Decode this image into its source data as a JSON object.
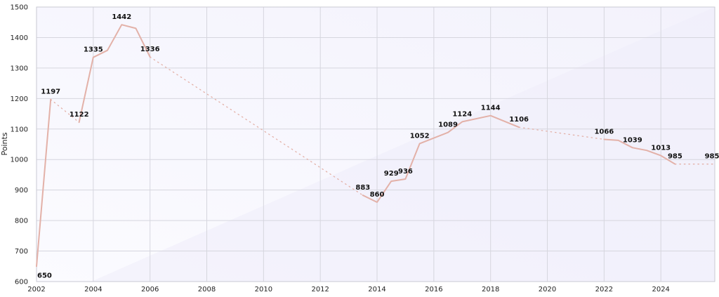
{
  "chart_data": {
    "type": "line",
    "title": "",
    "xlabel": "",
    "ylabel": "Points",
    "xlim": [
      2002,
      2025.9
    ],
    "ylim": [
      600,
      1500
    ],
    "xticks": [
      2002,
      2004,
      2006,
      2008,
      2010,
      2012,
      2014,
      2016,
      2018,
      2020,
      2022,
      2024
    ],
    "yticks": [
      600,
      700,
      800,
      900,
      1000,
      1100,
      1200,
      1300,
      1400,
      1500
    ],
    "grid": true,
    "colors": {
      "line": "#e3b1a8",
      "plot_bg": "#f7f6fe",
      "grid": "#d6d6de"
    },
    "series": [
      {
        "points": [
          {
            "x": 2002.0,
            "y": 650,
            "label": "650"
          },
          {
            "x": 2002.5,
            "y": 1197,
            "label": "1197"
          },
          {
            "x": 2003.5,
            "y": 1122,
            "label": "1122"
          },
          {
            "x": 2004.0,
            "y": 1335,
            "label": "1335"
          },
          {
            "x": 2004.5,
            "y": 1358
          },
          {
            "x": 2005.0,
            "y": 1442,
            "label": "1442"
          },
          {
            "x": 2005.5,
            "y": 1430
          },
          {
            "x": 2006.0,
            "y": 1336,
            "label": "1336"
          },
          {
            "x": 2013.5,
            "y": 883,
            "label": "883"
          },
          {
            "x": 2014.0,
            "y": 860,
            "label": "860"
          },
          {
            "x": 2014.5,
            "y": 929,
            "label": "929"
          },
          {
            "x": 2015.0,
            "y": 936,
            "label": "936"
          },
          {
            "x": 2015.5,
            "y": 1052,
            "label": "1052"
          },
          {
            "x": 2016.5,
            "y": 1089,
            "label": "1089"
          },
          {
            "x": 2017.0,
            "y": 1124,
            "label": "1124"
          },
          {
            "x": 2018.0,
            "y": 1144,
            "label": "1144"
          },
          {
            "x": 2019.0,
            "y": 1106,
            "label": "1106"
          },
          {
            "x": 2022.0,
            "y": 1066,
            "label": "1066"
          },
          {
            "x": 2022.5,
            "y": 1063
          },
          {
            "x": 2023.0,
            "y": 1039,
            "label": "1039"
          },
          {
            "x": 2023.5,
            "y": 1030
          },
          {
            "x": 2024.0,
            "y": 1013,
            "label": "1013"
          },
          {
            "x": 2024.5,
            "y": 985,
            "label": "985"
          },
          {
            "x": 2025.9,
            "y": 985,
            "label": "985"
          }
        ],
        "segments": [
          {
            "from": 0,
            "to": 1,
            "style": "solid"
          },
          {
            "from": 1,
            "to": 2,
            "style": "dotted"
          },
          {
            "from": 2,
            "to": 7,
            "style": "solid"
          },
          {
            "from": 7,
            "to": 8,
            "style": "dotted"
          },
          {
            "from": 8,
            "to": 16,
            "style": "solid"
          },
          {
            "from": 16,
            "to": 17,
            "style": "dotted"
          },
          {
            "from": 17,
            "to": 22,
            "style": "solid"
          },
          {
            "from": 22,
            "to": 23,
            "style": "dotted"
          }
        ]
      }
    ]
  }
}
